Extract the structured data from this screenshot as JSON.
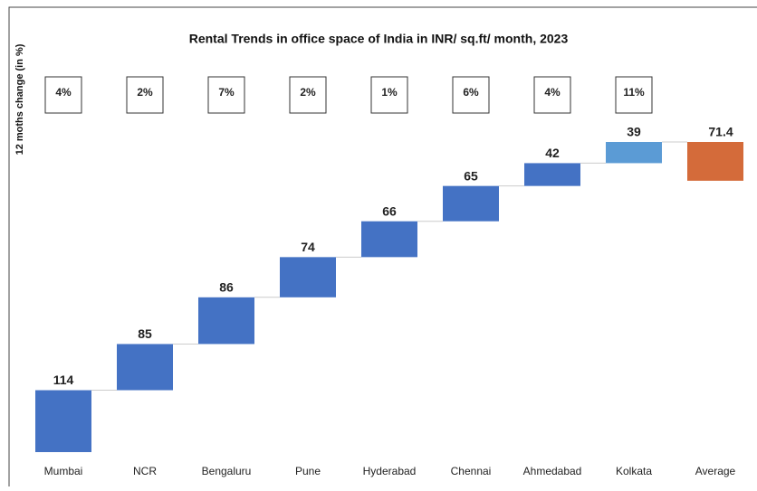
{
  "chart_data": {
    "type": "waterfall",
    "title": "Rental Trends in office space of India in INR/ sq.ft/ month, 2023",
    "side_label": "12 moths change (in %)",
    "categories": [
      "Mumbai",
      "NCR",
      "Bengaluru",
      "Pune",
      "Hyderabad",
      "Chennai",
      "Ahmedabad",
      "Kolkata",
      "Average"
    ],
    "values": [
      114,
      85,
      86,
      74,
      66,
      65,
      42,
      39,
      71.4
    ],
    "colors": [
      "#4472c4",
      "#4472c4",
      "#4472c4",
      "#4472c4",
      "#4472c4",
      "#4472c4",
      "#4472c4",
      "#5b9bd5",
      "#d46b3a"
    ],
    "changes": [
      "4%",
      "2%",
      "7%",
      "2%",
      "1%",
      "6%",
      "4%",
      "11%"
    ]
  }
}
